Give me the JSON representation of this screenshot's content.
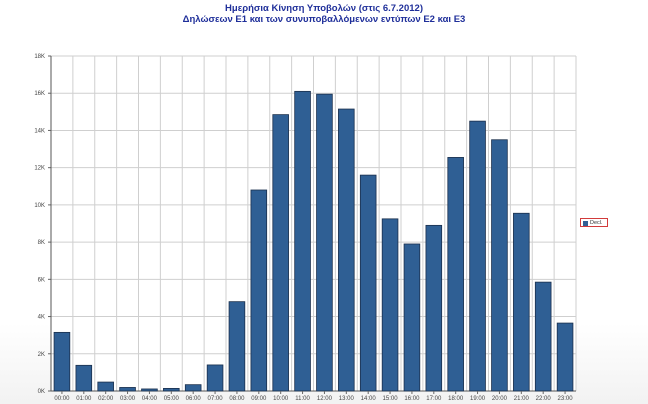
{
  "header": {
    "title": "Ημερήσια Κίνηση Υποβολών (στις 6.7.2012)",
    "subtitle": "Δηλώσεων Ε1 και των συνυποβαλλόμενων εντύπων Ε2 και Ε3"
  },
  "legend": {
    "label": "Decl.",
    "placement": "right"
  },
  "colors": {
    "bar_fill": "#2f5f94",
    "bar_stroke": "#1a2f4c",
    "title": "#1f2f9a",
    "grid": "#cfcfcf"
  },
  "chart_data": {
    "type": "bar",
    "title": "Ημερήσια Κίνηση Υποβολών (στις 6.7.2012)",
    "subtitle": "Δηλώσεων Ε1 και των συνυποβαλλόμενων εντύπων Ε2 και Ε3",
    "categories": [
      "00:00",
      "01:00",
      "02:00",
      "03:00",
      "04:00",
      "05:00",
      "06:00",
      "07:00",
      "08:00",
      "09:00",
      "10:00",
      "11:00",
      "12:00",
      "13:00",
      "14:00",
      "15:00",
      "16:00",
      "17:00",
      "18:00",
      "19:00",
      "20:00",
      "21:00",
      "22:00",
      "23:00"
    ],
    "series": [
      {
        "name": "Decl.",
        "values": [
          3150,
          1380,
          480,
          190,
          110,
          140,
          340,
          1400,
          4800,
          10800,
          14850,
          16100,
          15950,
          15150,
          11600,
          9250,
          7900,
          8900,
          12550,
          14500,
          13500,
          9550,
          5850,
          3650
        ]
      }
    ],
    "ylim": [
      0,
      18000
    ],
    "yticks": [
      "0K",
      "2K",
      "4K",
      "6K",
      "8K",
      "10K",
      "12K",
      "14K",
      "16K",
      "18K"
    ],
    "xlabel": "",
    "ylabel": "",
    "grid": true,
    "legend_position": "right"
  }
}
